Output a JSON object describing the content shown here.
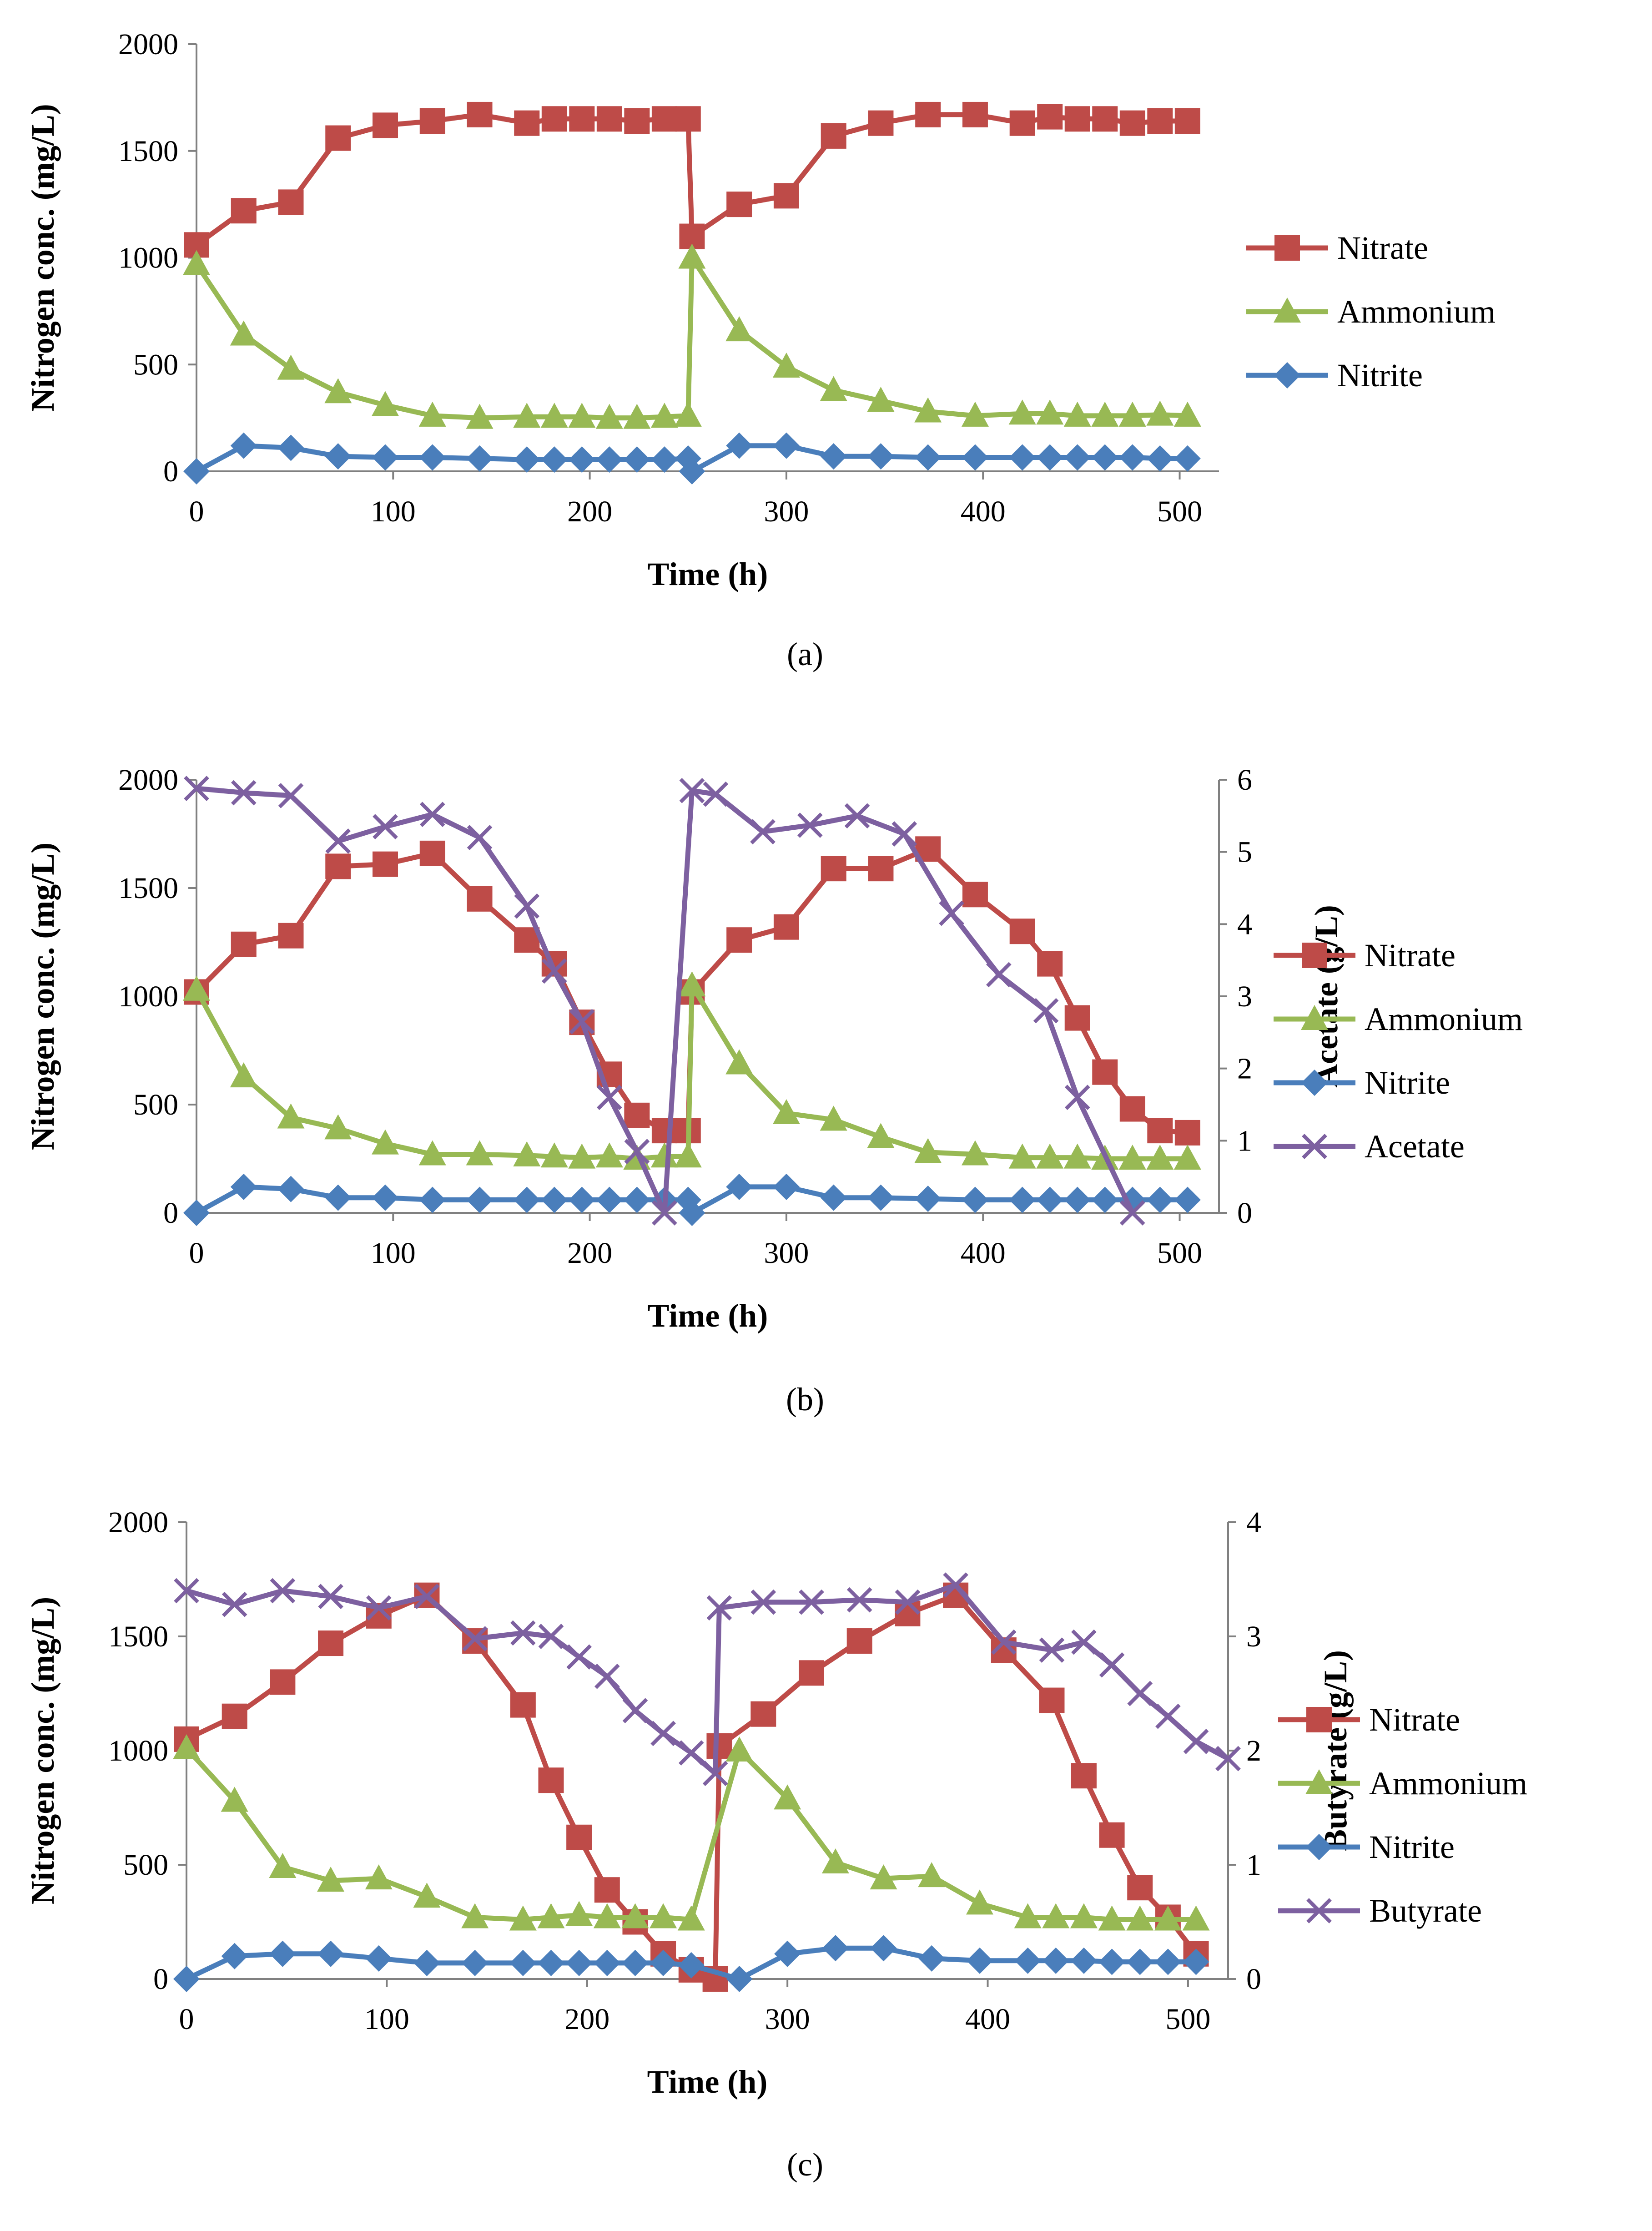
{
  "colors": {
    "nitrate": "#be4b48",
    "ammonium": "#98b954",
    "nitrite": "#4a7ebb",
    "organic": "#7d60a0",
    "axis": "#808080"
  },
  "chart_data": [
    {
      "type": "line",
      "panel_label": "(a)",
      "xlabel": "Time (h)",
      "ylabel": "Nitrogen conc. (mg/L)",
      "xlim": [
        0,
        520
      ],
      "xticks": [
        0,
        100,
        200,
        300,
        400,
        500
      ],
      "ylim": [
        0,
        2000
      ],
      "yticks": [
        0,
        500,
        1000,
        1500,
        2000
      ],
      "legend_position": "right",
      "series": [
        {
          "name": "Nitrate",
          "key": "nitrate",
          "marker": "square",
          "axis": "left",
          "x": [
            0,
            24,
            48,
            72,
            96,
            120,
            144,
            168,
            182,
            196,
            210,
            224,
            238,
            250,
            252,
            276,
            300,
            324,
            348,
            372,
            396,
            420,
            434,
            448,
            462,
            476,
            490,
            504
          ],
          "y": [
            1060,
            1220,
            1260,
            1560,
            1620,
            1640,
            1670,
            1630,
            1650,
            1650,
            1650,
            1640,
            1650,
            1650,
            1100,
            1250,
            1290,
            1570,
            1630,
            1670,
            1670,
            1630,
            1660,
            1650,
            1650,
            1630,
            1640,
            1640
          ]
        },
        {
          "name": "Ammonium",
          "key": "ammonium",
          "marker": "triangle",
          "axis": "left",
          "x": [
            0,
            24,
            48,
            72,
            96,
            120,
            144,
            168,
            182,
            196,
            210,
            224,
            238,
            250,
            252,
            276,
            300,
            324,
            348,
            372,
            396,
            420,
            434,
            448,
            462,
            476,
            490,
            504
          ],
          "y": [
            970,
            640,
            480,
            370,
            310,
            260,
            250,
            255,
            255,
            255,
            250,
            250,
            255,
            260,
            1000,
            660,
            490,
            380,
            330,
            280,
            260,
            270,
            270,
            260,
            260,
            260,
            265,
            260
          ]
        },
        {
          "name": "Nitrite",
          "key": "nitrite",
          "marker": "diamond",
          "axis": "left",
          "x": [
            0,
            24,
            48,
            72,
            96,
            120,
            144,
            168,
            182,
            196,
            210,
            224,
            238,
            250,
            252,
            276,
            300,
            324,
            348,
            372,
            396,
            420,
            434,
            448,
            462,
            476,
            490,
            504
          ],
          "y": [
            0,
            120,
            110,
            70,
            65,
            65,
            60,
            55,
            55,
            55,
            55,
            55,
            55,
            60,
            0,
            120,
            120,
            70,
            70,
            65,
            65,
            65,
            65,
            65,
            65,
            65,
            60,
            60
          ]
        }
      ]
    },
    {
      "type": "line",
      "panel_label": "(b)",
      "xlabel": "Time (h)",
      "ylabel": "Nitrogen conc. (mg/L)",
      "y2label": "Acetate (g/L)",
      "xlim": [
        0,
        520
      ],
      "xticks": [
        0,
        100,
        200,
        300,
        400,
        500
      ],
      "ylim": [
        0,
        2000
      ],
      "yticks": [
        0,
        500,
        1000,
        1500,
        2000
      ],
      "y2lim": [
        0,
        6
      ],
      "y2ticks": [
        0,
        1,
        2,
        3,
        4,
        5,
        6
      ],
      "legend_position": "right",
      "series": [
        {
          "name": "Nitrate",
          "key": "nitrate",
          "marker": "square",
          "axis": "left",
          "x": [
            0,
            24,
            48,
            72,
            96,
            120,
            144,
            168,
            182,
            196,
            210,
            224,
            238,
            250,
            252,
            276,
            300,
            324,
            348,
            372,
            396,
            420,
            434,
            448,
            462,
            476,
            490,
            504
          ],
          "y": [
            1020,
            1240,
            1280,
            1600,
            1610,
            1660,
            1450,
            1260,
            1150,
            880,
            640,
            450,
            380,
            380,
            1020,
            1260,
            1320,
            1590,
            1590,
            1680,
            1470,
            1300,
            1150,
            900,
            650,
            480,
            380,
            370
          ]
        },
        {
          "name": "Ammonium",
          "key": "ammonium",
          "marker": "triangle",
          "axis": "left",
          "x": [
            0,
            24,
            48,
            72,
            96,
            120,
            144,
            168,
            182,
            196,
            210,
            224,
            238,
            250,
            252,
            276,
            300,
            324,
            348,
            372,
            396,
            420,
            434,
            448,
            462,
            476,
            490,
            504
          ],
          "y": [
            1030,
            630,
            440,
            390,
            320,
            270,
            270,
            265,
            260,
            255,
            260,
            250,
            260,
            260,
            1050,
            690,
            460,
            430,
            350,
            280,
            270,
            255,
            255,
            255,
            250,
            250,
            250,
            250
          ]
        },
        {
          "name": "Nitrite",
          "key": "nitrite",
          "marker": "diamond",
          "axis": "left",
          "x": [
            0,
            24,
            48,
            72,
            96,
            120,
            144,
            168,
            182,
            196,
            210,
            224,
            238,
            250,
            252,
            276,
            300,
            324,
            348,
            372,
            396,
            420,
            434,
            448,
            462,
            476,
            490,
            504
          ],
          "y": [
            0,
            120,
            110,
            70,
            70,
            60,
            60,
            60,
            60,
            60,
            60,
            60,
            60,
            60,
            0,
            120,
            120,
            70,
            70,
            65,
            60,
            60,
            60,
            60,
            60,
            60,
            60,
            60
          ]
        },
        {
          "name": "Acetate",
          "key": "organic",
          "marker": "x",
          "axis": "right",
          "x": [
            0,
            24,
            48,
            72,
            96,
            120,
            144,
            168,
            182,
            196,
            210,
            224,
            238,
            252,
            264,
            288,
            312,
            336,
            360,
            384,
            408,
            432,
            448,
            476
          ],
          "y": [
            5.88,
            5.82,
            5.78,
            5.15,
            5.35,
            5.52,
            5.2,
            4.25,
            3.35,
            2.65,
            1.6,
            0.85,
            0,
            5.85,
            5.8,
            5.28,
            5.37,
            5.5,
            5.25,
            4.15,
            3.3,
            2.8,
            1.6,
            0
          ]
        }
      ]
    },
    {
      "type": "line",
      "panel_label": "(c)",
      "xlabel": "Time (h)",
      "ylabel": "Nitrogen conc. (mg/L)",
      "y2label": "Butyrate (g/L)",
      "xlim": [
        0,
        520
      ],
      "xticks": [
        0,
        100,
        200,
        300,
        400,
        500
      ],
      "ylim": [
        0,
        2000
      ],
      "yticks": [
        0,
        500,
        1000,
        1500,
        2000
      ],
      "y2lim": [
        0,
        4
      ],
      "y2ticks": [
        0,
        1,
        2,
        3,
        4
      ],
      "legend_position": "right",
      "series": [
        {
          "name": "Nitrate",
          "key": "nitrate",
          "marker": "square",
          "axis": "left",
          "x": [
            0,
            24,
            48,
            72,
            96,
            120,
            144,
            168,
            182,
            196,
            210,
            224,
            238,
            252,
            264,
            266,
            288,
            312,
            336,
            360,
            384,
            408,
            432,
            448,
            462,
            476,
            490,
            504
          ],
          "y": [
            1050,
            1150,
            1300,
            1470,
            1590,
            1680,
            1480,
            1200,
            870,
            620,
            390,
            250,
            110,
            40,
            0,
            1020,
            1160,
            1340,
            1480,
            1600,
            1680,
            1440,
            1220,
            890,
            630,
            400,
            270,
            110
          ]
        },
        {
          "name": "Ammonium",
          "key": "ammonium",
          "marker": "triangle",
          "axis": "left",
          "x": [
            0,
            24,
            48,
            72,
            96,
            120,
            144,
            168,
            182,
            196,
            210,
            224,
            238,
            252,
            276,
            300,
            324,
            348,
            372,
            396,
            420,
            434,
            448,
            462,
            476,
            490,
            504
          ],
          "y": [
            1010,
            780,
            490,
            430,
            440,
            360,
            270,
            260,
            270,
            280,
            270,
            270,
            270,
            260,
            1000,
            790,
            510,
            440,
            450,
            330,
            270,
            270,
            270,
            260,
            260,
            260,
            260
          ]
        },
        {
          "name": "Nitrite",
          "key": "nitrite",
          "marker": "diamond",
          "axis": "left",
          "x": [
            0,
            24,
            48,
            72,
            96,
            120,
            144,
            168,
            182,
            196,
            210,
            224,
            238,
            252,
            276,
            300,
            324,
            348,
            372,
            396,
            420,
            434,
            448,
            462,
            476,
            490,
            504
          ],
          "y": [
            0,
            100,
            110,
            110,
            90,
            70,
            70,
            70,
            70,
            70,
            70,
            70,
            70,
            60,
            0,
            110,
            135,
            135,
            90,
            80,
            80,
            80,
            80,
            75,
            75,
            75,
            75
          ]
        },
        {
          "name": "Butyrate",
          "key": "organic",
          "marker": "x",
          "axis": "right",
          "x": [
            0,
            24,
            48,
            72,
            96,
            120,
            144,
            168,
            182,
            196,
            210,
            224,
            238,
            252,
            264,
            266,
            288,
            312,
            336,
            360,
            384,
            408,
            432,
            448,
            462,
            476,
            490,
            504,
            520
          ],
          "y": [
            3.4,
            3.28,
            3.4,
            3.35,
            3.25,
            3.35,
            2.98,
            3.03,
            3.0,
            2.82,
            2.65,
            2.35,
            2.15,
            1.98,
            1.8,
            3.25,
            3.3,
            3.3,
            3.32,
            3.3,
            3.45,
            2.95,
            2.88,
            2.95,
            2.75,
            2.5,
            2.3,
            2.08,
            1.93
          ]
        }
      ]
    }
  ]
}
